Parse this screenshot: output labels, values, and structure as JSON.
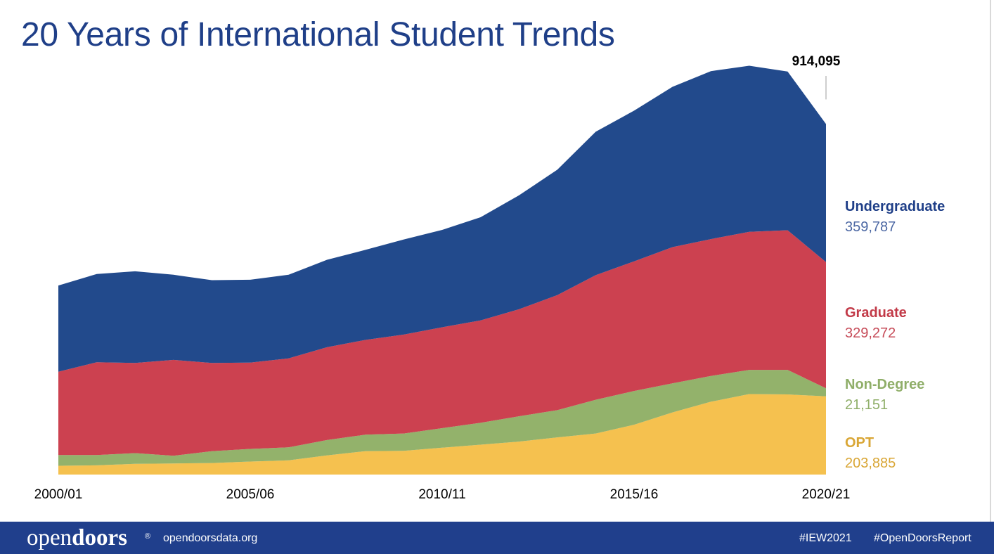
{
  "title": "20 Years of International Student Trends",
  "chart_data": {
    "type": "area",
    "stacked": true,
    "title": "20 Years of International Student Trends",
    "xlabel": "",
    "ylabel": "",
    "ylim": [
      0,
      1100000
    ],
    "grid": false,
    "legend": "right",
    "x": [
      "2000/01",
      "2001/02",
      "2002/03",
      "2003/04",
      "2004/05",
      "2005/06",
      "2006/07",
      "2007/08",
      "2008/09",
      "2009/10",
      "2010/11",
      "2011/12",
      "2012/13",
      "2013/14",
      "2014/15",
      "2015/16",
      "2016/17",
      "2017/18",
      "2018/19",
      "2019/20",
      "2020/21"
    ],
    "x_tick_labels": [
      "2000/01",
      "2005/06",
      "2010/11",
      "2015/16",
      "2020/21"
    ],
    "total_annotation": "914,095",
    "series": [
      {
        "name": "OPT",
        "display_value": "203,885",
        "color": "#f5c14f",
        "values": [
          23000,
          24000,
          28000,
          29000,
          30000,
          34000,
          37000,
          50000,
          61000,
          62000,
          70000,
          78000,
          86000,
          97000,
          107000,
          130000,
          162000,
          190000,
          210000,
          209000,
          203885
        ]
      },
      {
        "name": "Non-Degree",
        "display_value": "21,151",
        "color": "#93b26b",
        "values": [
          28000,
          27000,
          28000,
          20000,
          31000,
          33000,
          34000,
          40000,
          43000,
          45000,
          51000,
          57000,
          66000,
          71000,
          88000,
          88000,
          76000,
          67000,
          63000,
          64000,
          21151
        ]
      },
      {
        "name": "Graduate",
        "display_value": "329,272",
        "color": "#cc4150",
        "values": [
          217000,
          242000,
          235000,
          250000,
          230000,
          225000,
          232000,
          242000,
          247000,
          258000,
          263000,
          267000,
          279000,
          300000,
          325000,
          338000,
          355000,
          357000,
          360000,
          364000,
          329272
        ]
      },
      {
        "name": "Undergraduate",
        "display_value": "359,787",
        "color": "#224a8c",
        "values": [
          225000,
          230000,
          239000,
          222000,
          216000,
          216000,
          218000,
          228000,
          235000,
          248000,
          254000,
          269000,
          297000,
          327000,
          374000,
          393000,
          418000,
          438000,
          433000,
          414000,
          359787
        ]
      }
    ]
  },
  "footer": {
    "logo_part1": "open",
    "logo_part2": "doors",
    "logo_reg": "®",
    "site": "opendoorsdata.org",
    "hashtag1": "#IEW2021",
    "hashtag2": "#OpenDoorsReport"
  },
  "colors": {
    "title": "#1f3f88",
    "footer_bg": "#203f8c",
    "axis_text": "#000000"
  }
}
